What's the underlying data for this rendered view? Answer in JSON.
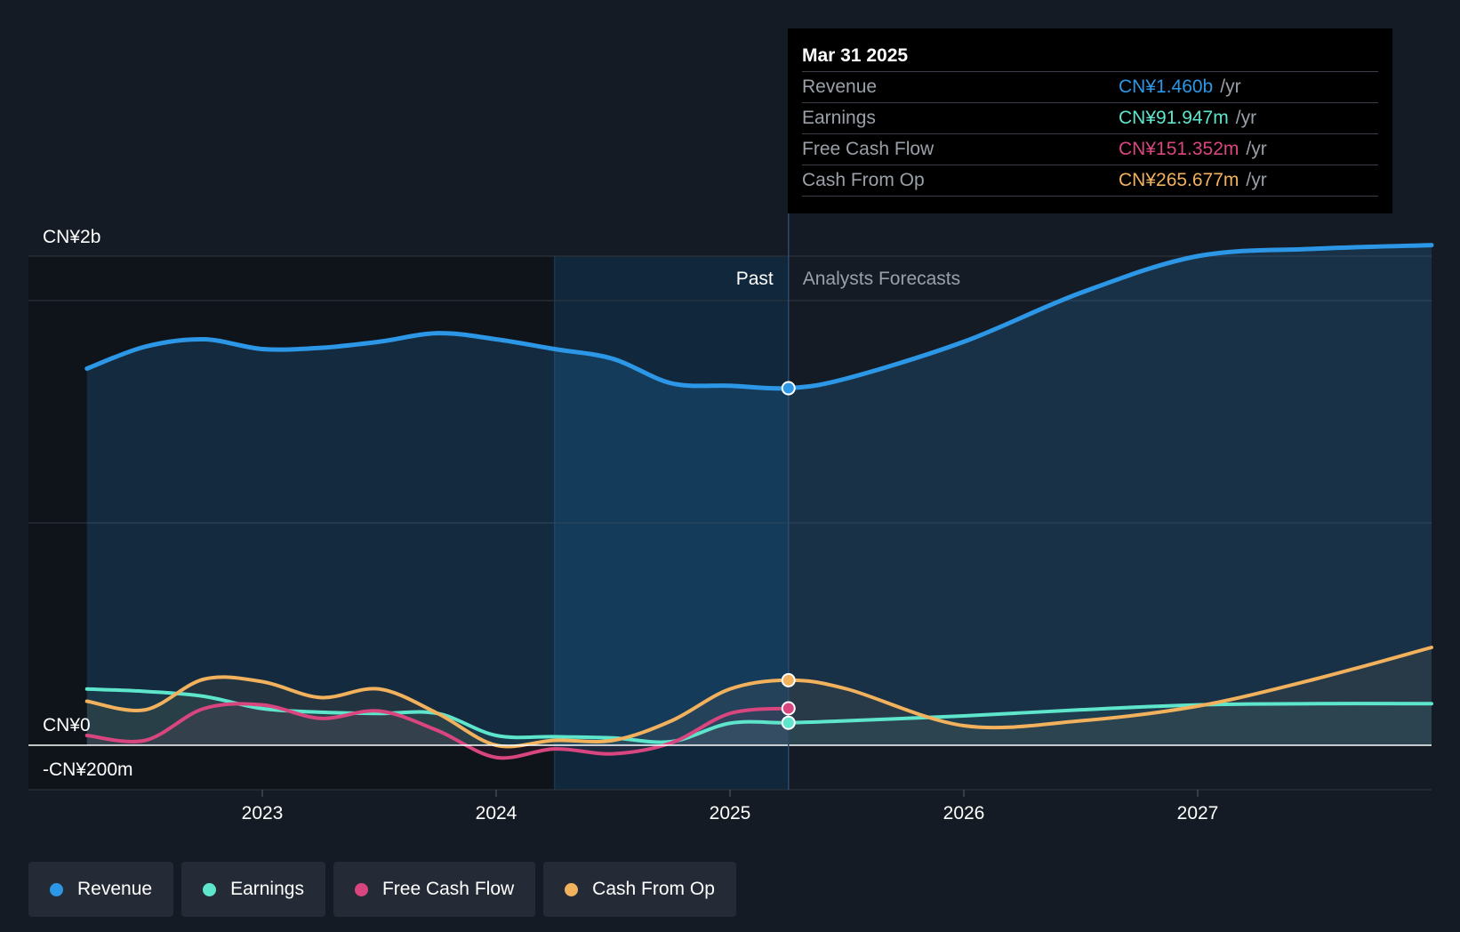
{
  "tooltip": {
    "date": "Mar 31 2025",
    "rows": [
      {
        "label": "Revenue",
        "value": "CN¥1.460b",
        "unit": "/yr",
        "color": "#2c97e6"
      },
      {
        "label": "Earnings",
        "value": "CN¥91.947m",
        "unit": "/yr",
        "color": "#5ee6cd"
      },
      {
        "label": "Free Cash Flow",
        "value": "CN¥151.352m",
        "unit": "/yr",
        "color": "#d9467f"
      },
      {
        "label": "Cash From Op",
        "value": "CN¥265.677m",
        "unit": "/yr",
        "color": "#f2b15c"
      }
    ]
  },
  "legend": [
    {
      "label": "Revenue",
      "color": "#2c97e6"
    },
    {
      "label": "Earnings",
      "color": "#5ee6cd"
    },
    {
      "label": "Free Cash Flow",
      "color": "#d9467f"
    },
    {
      "label": "Cash From Op",
      "color": "#f2b15c"
    }
  ],
  "chart_data": {
    "type": "line",
    "past_label": "Past",
    "forecast_label": "Analysts Forecasts",
    "divider_x": 2025.25,
    "highlight_start_x": 2024.25,
    "xlim": [
      2022.0,
      2028.0
    ],
    "ylim": [
      -200,
      2000
    ],
    "y_ticks": [
      {
        "value": 2000,
        "label": "CN¥2b"
      },
      {
        "value": 0,
        "label": "CN¥0"
      },
      {
        "value": -200,
        "label": "-CN¥200m"
      }
    ],
    "x_ticks": [
      {
        "value": 2023,
        "label": "2023"
      },
      {
        "value": 2024,
        "label": "2024"
      },
      {
        "value": 2025,
        "label": "2025"
      },
      {
        "value": 2026,
        "label": "2026"
      },
      {
        "value": 2027,
        "label": "2027"
      }
    ],
    "series": [
      {
        "name": "Revenue",
        "color": "#2c97e6",
        "width": 5,
        "points": [
          [
            2022.25,
            1540
          ],
          [
            2022.5,
            1630
          ],
          [
            2022.75,
            1660
          ],
          [
            2023.0,
            1620
          ],
          [
            2023.25,
            1625
          ],
          [
            2023.5,
            1650
          ],
          [
            2023.75,
            1685
          ],
          [
            2024.0,
            1660
          ],
          [
            2024.25,
            1620
          ],
          [
            2024.5,
            1580
          ],
          [
            2024.75,
            1480
          ],
          [
            2025.0,
            1470
          ],
          [
            2025.25,
            1460
          ],
          [
            2025.5,
            1500
          ],
          [
            2026.0,
            1650
          ],
          [
            2026.5,
            1850
          ],
          [
            2027.0,
            2000
          ],
          [
            2027.5,
            2030
          ],
          [
            2028.0,
            2045
          ]
        ],
        "marker_x": 2025.25,
        "marker_y": 1460
      },
      {
        "name": "Earnings",
        "color": "#5ee6cd",
        "width": 4,
        "points": [
          [
            2022.25,
            230
          ],
          [
            2022.5,
            220
          ],
          [
            2022.75,
            200
          ],
          [
            2023.0,
            150
          ],
          [
            2023.25,
            135
          ],
          [
            2023.5,
            130
          ],
          [
            2023.75,
            130
          ],
          [
            2024.0,
            40
          ],
          [
            2024.25,
            35
          ],
          [
            2024.5,
            30
          ],
          [
            2024.75,
            15
          ],
          [
            2025.0,
            90
          ],
          [
            2025.25,
            92
          ],
          [
            2025.5,
            100
          ],
          [
            2026.0,
            120
          ],
          [
            2026.5,
            145
          ],
          [
            2027.0,
            165
          ],
          [
            2027.5,
            170
          ],
          [
            2028.0,
            170
          ]
        ],
        "marker_x": 2025.25,
        "marker_y": 92
      },
      {
        "name": "Free Cash Flow",
        "color": "#d9467f",
        "width": 4,
        "points": [
          [
            2022.25,
            40
          ],
          [
            2022.5,
            20
          ],
          [
            2022.75,
            150
          ],
          [
            2023.0,
            165
          ],
          [
            2023.25,
            110
          ],
          [
            2023.5,
            140
          ],
          [
            2023.75,
            60
          ],
          [
            2024.0,
            -50
          ],
          [
            2024.25,
            -15
          ],
          [
            2024.5,
            -35
          ],
          [
            2024.75,
            10
          ],
          [
            2025.0,
            130
          ],
          [
            2025.25,
            151
          ]
        ],
        "marker_x": 2025.25,
        "marker_y": 151
      },
      {
        "name": "Cash From Op",
        "color": "#f2b15c",
        "width": 4,
        "points": [
          [
            2022.25,
            180
          ],
          [
            2022.5,
            145
          ],
          [
            2022.75,
            270
          ],
          [
            2023.0,
            260
          ],
          [
            2023.25,
            195
          ],
          [
            2023.5,
            230
          ],
          [
            2023.75,
            130
          ],
          [
            2024.0,
            0
          ],
          [
            2024.25,
            20
          ],
          [
            2024.5,
            20
          ],
          [
            2024.75,
            100
          ],
          [
            2025.0,
            230
          ],
          [
            2025.25,
            266
          ],
          [
            2025.5,
            230
          ],
          [
            2026.0,
            80
          ],
          [
            2026.5,
            100
          ],
          [
            2027.0,
            160
          ],
          [
            2027.5,
            270
          ],
          [
            2028.0,
            400
          ]
        ],
        "marker_x": 2025.25,
        "marker_y": 266
      }
    ]
  }
}
